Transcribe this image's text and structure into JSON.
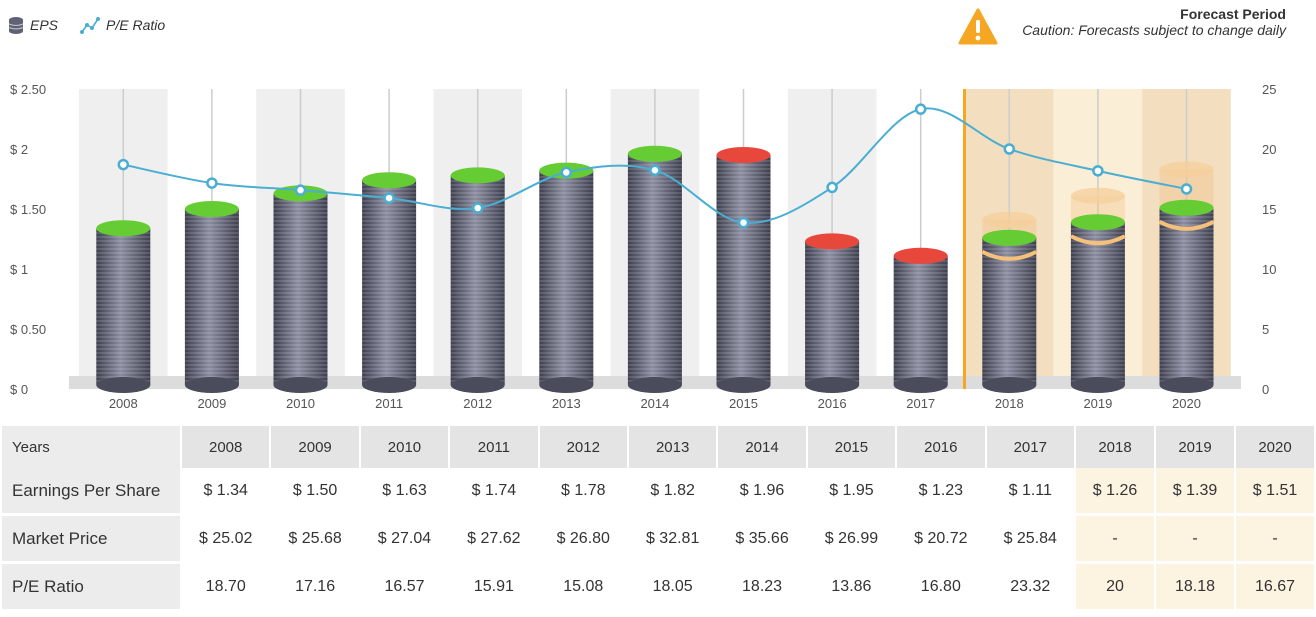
{
  "legend": {
    "eps_label": "EPS",
    "pe_label": "P/E Ratio"
  },
  "forecast": {
    "title": "Forecast Period",
    "caution": "Caution: Forecasts subject to change daily"
  },
  "colors": {
    "bar_body": "#5f6275",
    "cap_up": "#66cc33",
    "cap_down": "#e8483c",
    "pe_line": "#4aaed3",
    "forecast_bg": "#f3dfbf",
    "forecast_marker": "#f5a623"
  },
  "chart_data": {
    "type": "bar",
    "categories": [
      "2008",
      "2009",
      "2010",
      "2011",
      "2012",
      "2013",
      "2014",
      "2015",
      "2016",
      "2017",
      "2018",
      "2019",
      "2020"
    ],
    "series": [
      {
        "name": "EPS",
        "values": [
          1.34,
          1.5,
          1.63,
          1.74,
          1.78,
          1.82,
          1.96,
          1.95,
          1.23,
          1.11,
          1.26,
          1.39,
          1.51
        ],
        "direction": [
          "up",
          "up",
          "up",
          "up",
          "up",
          "up",
          "up",
          "down",
          "down",
          "down",
          "up",
          "up",
          "up"
        ],
        "axis": "left"
      },
      {
        "name": "P/E Ratio",
        "type": "line",
        "values": [
          18.7,
          17.16,
          16.57,
          15.91,
          15.08,
          18.05,
          18.23,
          13.86,
          16.8,
          23.32,
          20,
          18.18,
          16.67
        ],
        "axis": "right"
      }
    ],
    "forecast_ghost_values": [
      1.41,
      1.61,
      1.83
    ],
    "forecast_start_index": 10,
    "ylim_left": [
      0,
      2.5
    ],
    "ylim_right": [
      0,
      25
    ],
    "left_ticks": [
      "$ 0",
      "$ 0.50",
      "$ 1",
      "$ 1.50",
      "$ 2",
      "$ 2.50"
    ],
    "right_ticks": [
      "0",
      "5",
      "10",
      "15",
      "20",
      "25"
    ],
    "grid": false,
    "legend_position": "top-left"
  },
  "table": {
    "header_label": "Years",
    "years": [
      "2008",
      "2009",
      "2010",
      "2011",
      "2012",
      "2013",
      "2014",
      "2015",
      "2016",
      "2017",
      "2018",
      "2019",
      "2020"
    ],
    "rows": [
      {
        "label": "Earnings Per Share",
        "cells": [
          "$ 1.34",
          "$ 1.50",
          "$ 1.63",
          "$ 1.74",
          "$ 1.78",
          "$ 1.82",
          "$ 1.96",
          "$ 1.95",
          "$ 1.23",
          "$ 1.11",
          "$ 1.26",
          "$ 1.39",
          "$ 1.51"
        ]
      },
      {
        "label": "Market Price",
        "cells": [
          "$ 25.02",
          "$ 25.68",
          "$ 27.04",
          "$ 27.62",
          "$ 26.80",
          "$ 32.81",
          "$ 35.66",
          "$ 26.99",
          "$ 20.72",
          "$ 25.84",
          "-",
          "-",
          "-"
        ]
      },
      {
        "label": "P/E Ratio",
        "cells": [
          "18.70",
          "17.16",
          "16.57",
          "15.91",
          "15.08",
          "18.05",
          "18.23",
          "13.86",
          "16.80",
          "23.32",
          "20",
          "18.18",
          "16.67"
        ]
      }
    ]
  }
}
